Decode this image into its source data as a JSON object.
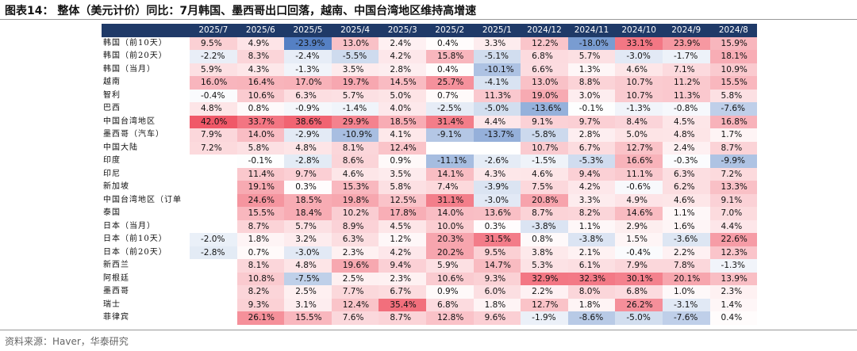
{
  "title": "图表14：  整体（美元计价）同比：7月韩国、墨西哥出口回落，越南、中国台湾地区维持高增速",
  "table": {
    "columns": [
      "2025/7",
      "2025/6",
      "2025/5",
      "2025/4",
      "2025/3",
      "2025/2",
      "2025/1",
      "2024/12",
      "2024/11",
      "2024/10",
      "2024/9",
      "2024/8"
    ],
    "rows": [
      {
        "label": "韩国（前10天）",
        "cells": [
          "9.5%",
          "4.9%",
          "-23.9%",
          "13.0%",
          "2.4%",
          "0.4%",
          "3.3%",
          "12.2%",
          "-18.0%",
          "33.1%",
          "23.9%",
          "15.9%"
        ]
      },
      {
        "label": "韩国（前20天）",
        "cells": [
          "-2.2%",
          "8.3%",
          "-2.4%",
          "-5.5%",
          "4.2%",
          "15.8%",
          "-5.1%",
          "6.8%",
          "5.7%",
          "-3.0%",
          "-1.7%",
          "18.1%"
        ]
      },
      {
        "label": "韩国（当月）",
        "cells": [
          "5.9%",
          "4.3%",
          "-1.3%",
          "3.5%",
          "2.8%",
          "0.4%",
          "-10.1%",
          "6.6%",
          "1.3%",
          "4.6%",
          "7.1%",
          "10.9%"
        ]
      },
      {
        "label": "越南",
        "cells": [
          "16.0%",
          "16.4%",
          "17.0%",
          "19.7%",
          "14.5%",
          "25.7%",
          "-4.1%",
          "13.0%",
          "8.8%",
          "10.7%",
          "11.2%",
          "15.5%"
        ]
      },
      {
        "label": "智利",
        "cells": [
          "-0.4%",
          "10.6%",
          "6.3%",
          "5.7%",
          "5.0%",
          "0.7%",
          "11.3%",
          "19.0%",
          "3.0%",
          "10.7%",
          "11.3%",
          "5.8%"
        ]
      },
      {
        "label": "巴西",
        "cells": [
          "4.8%",
          "0.8%",
          "-0.9%",
          "-1.4%",
          "4.0%",
          "-2.5%",
          "-5.0%",
          "-13.6%",
          "-0.1%",
          "-1.3%",
          "-0.8%",
          "-7.6%"
        ]
      },
      {
        "label": "中国台湾地区",
        "cells": [
          "42.0%",
          "33.7%",
          "38.6%",
          "29.9%",
          "18.5%",
          "31.4%",
          "4.4%",
          "9.1%",
          "9.7%",
          "8.4%",
          "4.5%",
          "16.8%"
        ]
      },
      {
        "label": "墨西哥（汽车）",
        "cells": [
          "7.9%",
          "14.0%",
          "-2.9%",
          "-10.9%",
          "4.1%",
          "-9.1%",
          "-13.7%",
          "-5.8%",
          "2.8%",
          "5.0%",
          "4.8%",
          "1.7%"
        ]
      },
      {
        "label": "中国大陆",
        "cells": [
          "7.2%",
          "5.8%",
          "4.8%",
          "8.1%",
          "12.4%",
          null,
          null,
          "10.7%",
          "6.7%",
          "12.7%",
          "2.4%",
          "8.7%"
        ]
      },
      {
        "label": "印度",
        "cells": [
          null,
          "-0.1%",
          "-2.8%",
          "8.6%",
          "0.9%",
          "-11.1%",
          "-2.6%",
          "-1.5%",
          "-5.3%",
          "16.6%",
          "-0.3%",
          "-9.9%"
        ]
      },
      {
        "label": "印尼",
        "cells": [
          null,
          "11.4%",
          "9.7%",
          "4.6%",
          "3.5%",
          "14.1%",
          "4.3%",
          "4.6%",
          "9.4%",
          "11.1%",
          "6.3%",
          "7.2%"
        ]
      },
      {
        "label": "新加坡",
        "cells": [
          null,
          "19.1%",
          "0.3%",
          "15.3%",
          "5.8%",
          "7.4%",
          "-3.9%",
          "7.5%",
          "4.2%",
          "-0.6%",
          "6.2%",
          "13.3%"
        ]
      },
      {
        "label": "中国台湾地区（订单",
        "cells": [
          null,
          "24.6%",
          "18.5%",
          "19.8%",
          "12.5%",
          "31.1%",
          "-3.0%",
          "20.8%",
          "3.3%",
          "4.9%",
          "4.6%",
          "9.1%"
        ]
      },
      {
        "label": "泰国",
        "cells": [
          null,
          "15.5%",
          "18.4%",
          "10.2%",
          "17.8%",
          "14.0%",
          "13.6%",
          "8.7%",
          "8.2%",
          "14.6%",
          "1.1%",
          "7.0%"
        ]
      },
      {
        "label": "日本（当月）",
        "cells": [
          null,
          "8.7%",
          "5.7%",
          "8.9%",
          "4.5%",
          "10.0%",
          "0.3%",
          "-3.8%",
          "1.1%",
          "2.9%",
          "1.6%",
          "4.4%"
        ]
      },
      {
        "label": "日本（前10天）",
        "cells": [
          "-2.0%",
          "1.8%",
          "3.2%",
          "6.3%",
          "1.2%",
          "20.3%",
          "31.5%",
          "0.8%",
          "-3.8%",
          "1.5%",
          "-3.6%",
          "22.6%"
        ]
      },
      {
        "label": "日本（前20天）",
        "cells": [
          "-2.8%",
          "0.7%",
          "-3.0%",
          "2.3%",
          "4.2%",
          "20.2%",
          "9.5%",
          "3.8%",
          "2.1%",
          "-0.4%",
          "2.2%",
          "12.3%"
        ]
      },
      {
        "label": "新西兰",
        "cells": [
          null,
          "8.1%",
          "4.8%",
          "19.6%",
          "9.4%",
          "5.9%",
          "14.7%",
          "5.3%",
          "6.1%",
          "7.9%",
          "7.8%",
          "-1.3%"
        ]
      },
      {
        "label": "阿根廷",
        "cells": [
          null,
          "10.8%",
          "-7.5%",
          "2.5%",
          "2.3%",
          "10.6%",
          "9.3%",
          "32.9%",
          "32.3%",
          "30.1%",
          "20.1%",
          "13.9%"
        ]
      },
      {
        "label": "墨西哥",
        "cells": [
          null,
          "8.2%",
          "2.5%",
          "7.7%",
          "6.7%",
          "0.9%",
          "6.0%",
          "2.2%",
          "8.0%",
          "6.8%",
          "1.0%",
          "2.3%"
        ]
      },
      {
        "label": "瑞士",
        "cells": [
          null,
          "9.3%",
          "3.1%",
          "12.4%",
          "35.4%",
          "6.8%",
          "1.8%",
          "12.7%",
          "1.8%",
          "26.2%",
          "-3.1%",
          "1.4%"
        ]
      },
      {
        "label": "菲律宾",
        "cells": [
          null,
          "26.1%",
          "15.5%",
          "7.6%",
          "8.7%",
          "12.8%",
          "9.6%",
          "-1.9%",
          "-8.6%",
          "-5.0%",
          "-7.6%",
          "0.4%"
        ]
      }
    ]
  },
  "source": "资料来源：Haver，华泰研究"
}
